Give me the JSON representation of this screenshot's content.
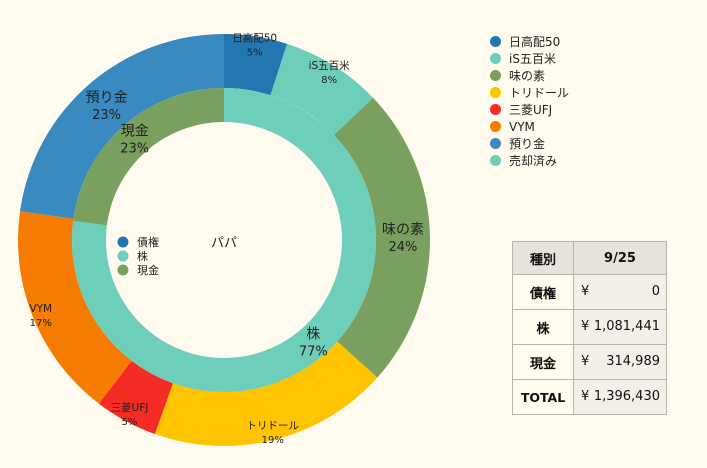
{
  "chart_data": {
    "type": "pie",
    "title": "パパ",
    "outer": [
      {
        "label": "日高配50",
        "pct_label": "5%",
        "value": 5,
        "color": "#2277b0"
      },
      {
        "label": "iS五百米",
        "pct_label": "8%",
        "value": 8,
        "color": "#6dcfba"
      },
      {
        "label": "味の素",
        "pct_label": "24%",
        "value": 24,
        "color": "#7aa05f"
      },
      {
        "label": "トリドール",
        "pct_label": "19%",
        "value": 19,
        "color": "#ffc400"
      },
      {
        "label": "三菱UFJ",
        "pct_label": "5%",
        "value": 5,
        "color": "#f52c26"
      },
      {
        "label": "VYM",
        "pct_label": "17%",
        "value": 17,
        "color": "#f57c00"
      },
      {
        "label": "預り金",
        "pct_label": "23%",
        "value": 23,
        "color": "#3a8ac2"
      }
    ],
    "inner": [
      {
        "label": "株",
        "pct_label": "77%",
        "value": 77,
        "color": "#6dcfba"
      },
      {
        "label": "現金",
        "pct_label": "23%",
        "value": 23,
        "color": "#7aa05f"
      }
    ],
    "inner_legend": [
      {
        "label": "債権",
        "color": "#2277b0"
      },
      {
        "label": "株",
        "color": "#6dcfba"
      },
      {
        "label": "現金",
        "color": "#7aa05f"
      }
    ],
    "legend": [
      {
        "label": "日高配50",
        "color": "#2277b0"
      },
      {
        "label": "iS五百米",
        "color": "#6dcfba"
      },
      {
        "label": "味の素",
        "color": "#7aa05f"
      },
      {
        "label": "トリドール",
        "color": "#ffc400"
      },
      {
        "label": "三菱UFJ",
        "color": "#f52c26"
      },
      {
        "label": "VYM",
        "color": "#f57c00"
      },
      {
        "label": "預り金",
        "color": "#3a8ac2"
      },
      {
        "label": "売却済み",
        "color": "#6dcfba"
      }
    ]
  },
  "summary": {
    "header": [
      "種別",
      "9/25"
    ],
    "rows": [
      {
        "key": "債権",
        "yen": "¥",
        "amount": "0"
      },
      {
        "key": "株",
        "yen": "¥",
        "amount": "1,081,441"
      },
      {
        "key": "現金",
        "yen": "¥",
        "amount": "314,989"
      },
      {
        "key": "TOTAL",
        "yen": "¥",
        "amount": "1,396,430"
      }
    ]
  }
}
